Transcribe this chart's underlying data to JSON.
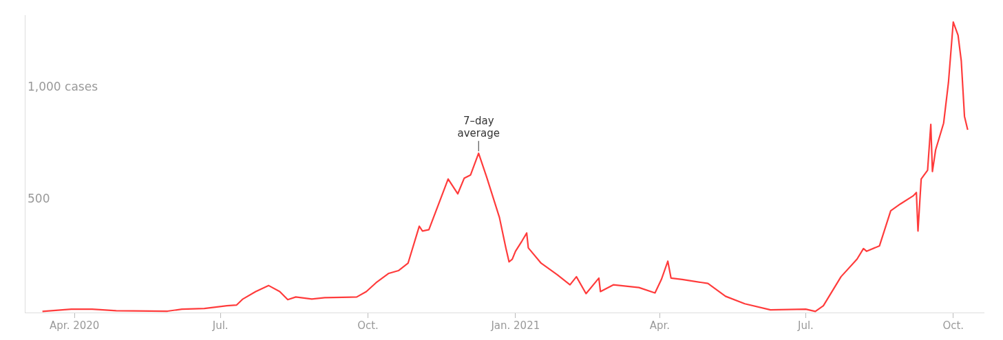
{
  "chart_data": {
    "type": "line",
    "xlabel": null,
    "x": [
      "2020-03-12",
      "2020-03-30",
      "2020-04-12",
      "2020-04-27",
      "2020-05-29",
      "2020-06-07",
      "2020-06-21",
      "2020-07-05",
      "2020-07-11",
      "2020-07-15",
      "2020-07-23",
      "2020-07-31",
      "2020-08-07",
      "2020-08-12",
      "2020-08-17",
      "2020-08-27",
      "2020-09-04",
      "2020-09-24",
      "2020-09-30",
      "2020-10-06",
      "2020-10-14",
      "2020-10-20",
      "2020-10-26",
      "2020-11-02",
      "2020-11-04",
      "2020-11-08",
      "2020-11-20",
      "2020-11-26",
      "2020-11-30",
      "2020-12-04",
      "2020-12-09",
      "2020-12-14",
      "2020-12-22",
      "2020-12-26",
      "2020-12-28",
      "2020-12-30",
      "2021-01-01",
      "2021-01-05",
      "2021-01-08",
      "2021-01-09",
      "2021-01-17",
      "2021-01-27",
      "2021-02-04",
      "2021-02-08",
      "2021-02-14",
      "2021-02-22",
      "2021-02-23",
      "2021-03-03",
      "2021-03-19",
      "2021-03-29",
      "2021-04-02",
      "2021-04-06",
      "2021-04-08",
      "2021-04-15",
      "2021-05-01",
      "2021-05-12",
      "2021-05-24",
      "2021-06-09",
      "2021-07-01",
      "2021-07-07",
      "2021-07-12",
      "2021-07-23",
      "2021-08-02",
      "2021-08-06",
      "2021-08-08",
      "2021-08-16",
      "2021-08-23",
      "2021-08-29",
      "2021-09-06",
      "2021-09-08",
      "2021-09-09",
      "2021-09-11",
      "2021-09-15",
      "2021-09-17",
      "2021-09-18",
      "2021-09-20",
      "2021-09-25",
      "2021-09-28",
      "2021-10-01",
      "2021-10-04",
      "2021-10-06",
      "2021-10-08",
      "2021-10-10"
    ],
    "series": [
      {
        "color": "#ff3b3b",
        "values": [
          5,
          15,
          15,
          8,
          6,
          15,
          18,
          30,
          33,
          60,
          93,
          120,
          93,
          57,
          69,
          60,
          66,
          69,
          93,
          132,
          174,
          186,
          219,
          383,
          362,
          368,
          593,
          527,
          596,
          611,
          707,
          602,
          422,
          287,
          225,
          237,
          272,
          317,
          353,
          287,
          219,
          168,
          123,
          159,
          84,
          153,
          93,
          123,
          111,
          87,
          147,
          228,
          153,
          147,
          129,
          72,
          39,
          12,
          15,
          5,
          30,
          159,
          237,
          284,
          272,
          296,
          452,
          482,
          518,
          533,
          362,
          593,
          632,
          835,
          626,
          722,
          841,
          1021,
          1290,
          1231,
          1117,
          871,
          811
        ]
      }
    ],
    "xticks": [
      {
        "value": "2020-04-01",
        "label": "Apr. 2020"
      },
      {
        "value": "2020-07-01",
        "label": "Jul."
      },
      {
        "value": "2020-10-01",
        "label": "Oct."
      },
      {
        "value": "2021-01-01",
        "label": "Jan. 2021"
      },
      {
        "value": "2021-04-01",
        "label": "Apr."
      },
      {
        "value": "2021-07-01",
        "label": "Jul."
      },
      {
        "value": "2021-10-01",
        "label": "Oct."
      }
    ],
    "yticks": [
      {
        "value": 500,
        "label": "500"
      },
      {
        "value": 1000,
        "label": "1,000 cases"
      }
    ],
    "xlim": [
      "2020-03-01",
      "2021-10-20"
    ],
    "ylim": [
      0,
      1320
    ],
    "annotations": [
      {
        "text": "7–day average",
        "x": "2020-12-09",
        "y": 707
      }
    ],
    "grid": false,
    "legend": false,
    "marker": "none",
    "line_style": "solid"
  }
}
